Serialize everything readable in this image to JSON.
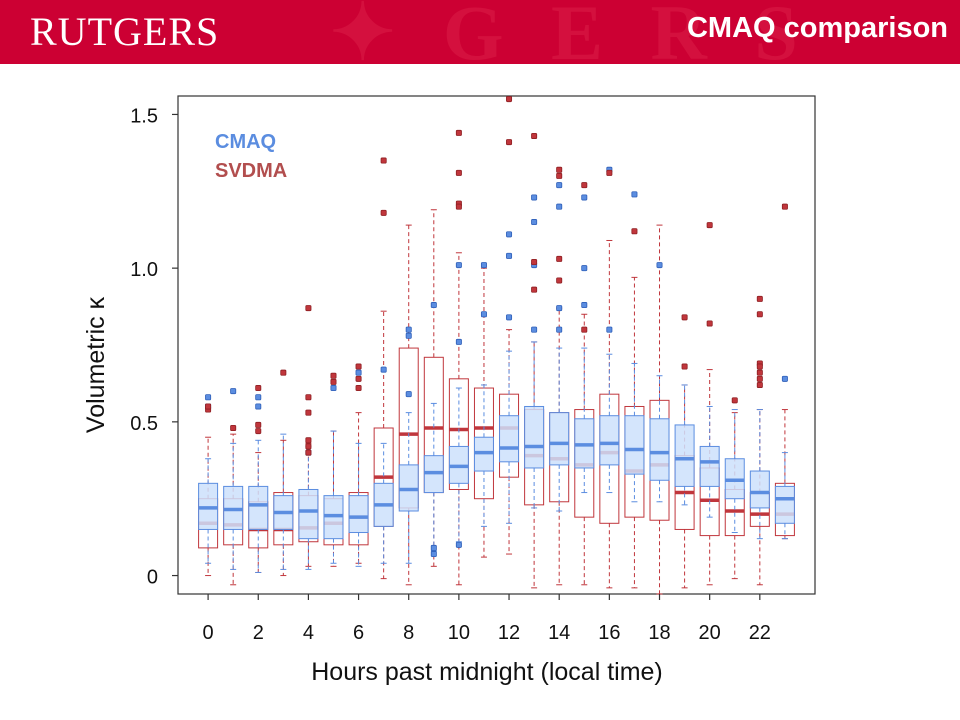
{
  "header": {
    "logo_text": "RUTGERS",
    "title": "CMAQ comparison"
  },
  "colors": {
    "header_bg": "#cc0033",
    "cmaq": "#5b8de0",
    "cmaq_fill": "#cde0fb",
    "svdma": "#c0363c"
  },
  "chart_data": {
    "type": "box",
    "xlabel": "Hours past midnight (local time)",
    "ylabel": "Volumetric κ",
    "xlim": [
      -1.2,
      24.2
    ],
    "ylim": [
      -0.06,
      1.56
    ],
    "x_ticks": [
      0,
      2,
      4,
      6,
      8,
      10,
      12,
      14,
      16,
      18,
      20,
      22
    ],
    "y_ticks": [
      0,
      0.5,
      1.0,
      1.5
    ],
    "y_tick_labels": [
      "0",
      "0.5",
      "1.0",
      "1.5"
    ],
    "legend_position": "top-left",
    "series": [
      {
        "name": "CMAQ",
        "boxes": [
          {
            "x": 0,
            "wlo": 0.04,
            "q1": 0.15,
            "med": 0.22,
            "q3": 0.3,
            "whi": 0.38,
            "out": [
              0.58,
              0.55
            ]
          },
          {
            "x": 1,
            "wlo": 0.02,
            "q1": 0.15,
            "med": 0.215,
            "q3": 0.29,
            "whi": 0.43,
            "out": [
              0.6
            ]
          },
          {
            "x": 2,
            "wlo": 0.01,
            "q1": 0.15,
            "med": 0.23,
            "q3": 0.29,
            "whi": 0.44,
            "out": [
              0.55,
              0.58
            ]
          },
          {
            "x": 3,
            "wlo": 0.02,
            "q1": 0.15,
            "med": 0.205,
            "q3": 0.26,
            "whi": 0.46,
            "out": []
          },
          {
            "x": 4,
            "wlo": 0.02,
            "q1": 0.12,
            "med": 0.21,
            "q3": 0.28,
            "whi": 0.42,
            "out": [
              0.4
            ]
          },
          {
            "x": 5,
            "wlo": 0.04,
            "q1": 0.12,
            "med": 0.195,
            "q3": 0.26,
            "whi": 0.47,
            "out": [
              0.61
            ]
          },
          {
            "x": 6,
            "wlo": 0.03,
            "q1": 0.14,
            "med": 0.19,
            "q3": 0.26,
            "whi": 0.43,
            "out": [
              0.66
            ]
          },
          {
            "x": 7,
            "wlo": 0.04,
            "q1": 0.16,
            "med": 0.23,
            "q3": 0.3,
            "whi": 0.43,
            "out": [
              0.67
            ]
          },
          {
            "x": 8,
            "wlo": 0.04,
            "q1": 0.21,
            "med": 0.28,
            "q3": 0.36,
            "whi": 0.53,
            "out": [
              0.8,
              0.78,
              0.59
            ]
          },
          {
            "x": 9,
            "wlo": 0.08,
            "q1": 0.27,
            "med": 0.335,
            "q3": 0.39,
            "whi": 0.56,
            "out": [
              0.88,
              0.07,
              0.09
            ]
          },
          {
            "x": 10,
            "wlo": 0.11,
            "q1": 0.3,
            "med": 0.355,
            "q3": 0.42,
            "whi": 0.61,
            "out": [
              1.01,
              0.76,
              0.1
            ]
          },
          {
            "x": 11,
            "wlo": 0.16,
            "q1": 0.34,
            "med": 0.4,
            "q3": 0.45,
            "whi": 0.62,
            "out": [
              1.01,
              0.85
            ]
          },
          {
            "x": 12,
            "wlo": 0.17,
            "q1": 0.37,
            "med": 0.415,
            "q3": 0.52,
            "whi": 0.73,
            "out": [
              1.11,
              1.04,
              0.84
            ]
          },
          {
            "x": 13,
            "wlo": 0.22,
            "q1": 0.35,
            "med": 0.42,
            "q3": 0.55,
            "whi": 0.76,
            "out": [
              1.23,
              1.15,
              1.01,
              0.8
            ]
          },
          {
            "x": 14,
            "wlo": 0.21,
            "q1": 0.36,
            "med": 0.43,
            "q3": 0.53,
            "whi": 0.74,
            "out": [
              1.27,
              1.2,
              0.87,
              0.8
            ]
          },
          {
            "x": 15,
            "wlo": 0.27,
            "q1": 0.35,
            "med": 0.425,
            "q3": 0.51,
            "whi": 0.74,
            "out": [
              1.23,
              1.0,
              0.88
            ]
          },
          {
            "x": 16,
            "wlo": 0.27,
            "q1": 0.36,
            "med": 0.43,
            "q3": 0.52,
            "whi": 0.72,
            "out": [
              1.32,
              0.8
            ]
          },
          {
            "x": 17,
            "wlo": 0.24,
            "q1": 0.33,
            "med": 0.41,
            "q3": 0.52,
            "whi": 0.69,
            "out": [
              1.24
            ]
          },
          {
            "x": 18,
            "wlo": 0.24,
            "q1": 0.31,
            "med": 0.4,
            "q3": 0.51,
            "whi": 0.65,
            "out": [
              1.01
            ]
          },
          {
            "x": 19,
            "wlo": 0.23,
            "q1": 0.29,
            "med": 0.38,
            "q3": 0.49,
            "whi": 0.62,
            "out": []
          },
          {
            "x": 20,
            "wlo": 0.19,
            "q1": 0.29,
            "med": 0.37,
            "q3": 0.42,
            "whi": 0.55,
            "out": []
          },
          {
            "x": 21,
            "wlo": 0.14,
            "q1": 0.25,
            "med": 0.31,
            "q3": 0.38,
            "whi": 0.54,
            "out": []
          },
          {
            "x": 22,
            "wlo": 0.12,
            "q1": 0.22,
            "med": 0.27,
            "q3": 0.34,
            "whi": 0.54,
            "out": []
          },
          {
            "x": 23,
            "wlo": 0.12,
            "q1": 0.17,
            "med": 0.25,
            "q3": 0.29,
            "whi": 0.4,
            "out": [
              0.64
            ]
          }
        ]
      },
      {
        "name": "SVDMA",
        "boxes": [
          {
            "x": 0,
            "wlo": 0.0,
            "q1": 0.09,
            "med": 0.17,
            "q3": 0.25,
            "whi": 0.45,
            "out": [
              0.54,
              0.55
            ]
          },
          {
            "x": 1,
            "wlo": -0.03,
            "q1": 0.1,
            "med": 0.165,
            "q3": 0.25,
            "whi": 0.46,
            "out": [
              0.48
            ]
          },
          {
            "x": 2,
            "wlo": 0.01,
            "q1": 0.09,
            "med": 0.15,
            "q3": 0.24,
            "whi": 0.4,
            "out": [
              0.49,
              0.47,
              0.61
            ]
          },
          {
            "x": 3,
            "wlo": 0.0,
            "q1": 0.1,
            "med": 0.15,
            "q3": 0.27,
            "whi": 0.44,
            "out": [
              0.66
            ]
          },
          {
            "x": 4,
            "wlo": 0.03,
            "q1": 0.11,
            "med": 0.155,
            "q3": 0.26,
            "whi": 0.43,
            "out": [
              0.87,
              0.58,
              0.53,
              0.44,
              0.42,
              0.4
            ]
          },
          {
            "x": 5,
            "wlo": 0.03,
            "q1": 0.1,
            "med": 0.17,
            "q3": 0.25,
            "whi": 0.47,
            "out": [
              0.65,
              0.63
            ]
          },
          {
            "x": 6,
            "wlo": 0.04,
            "q1": 0.1,
            "med": 0.19,
            "q3": 0.27,
            "whi": 0.53,
            "out": [
              0.68,
              0.64,
              0.61
            ]
          },
          {
            "x": 7,
            "wlo": -0.01,
            "q1": 0.16,
            "med": 0.32,
            "q3": 0.48,
            "whi": 0.86,
            "out": [
              1.35,
              1.18
            ]
          },
          {
            "x": 8,
            "wlo": -0.03,
            "q1": 0.22,
            "med": 0.46,
            "q3": 0.74,
            "whi": 1.14,
            "out": []
          },
          {
            "x": 9,
            "wlo": 0.03,
            "q1": 0.27,
            "med": 0.48,
            "q3": 0.71,
            "whi": 1.19,
            "out": []
          },
          {
            "x": 10,
            "wlo": -0.03,
            "q1": 0.28,
            "med": 0.475,
            "q3": 0.64,
            "whi": 1.05,
            "out": [
              1.44,
              1.31,
              1.21,
              1.2
            ]
          },
          {
            "x": 11,
            "wlo": 0.06,
            "q1": 0.25,
            "med": 0.48,
            "q3": 0.61,
            "whi": 1.0,
            "out": []
          },
          {
            "x": 12,
            "wlo": 0.07,
            "q1": 0.32,
            "med": 0.48,
            "q3": 0.59,
            "whi": 0.8,
            "out": [
              1.55,
              1.41
            ]
          },
          {
            "x": 13,
            "wlo": -0.04,
            "q1": 0.23,
            "med": 0.39,
            "q3": 0.54,
            "whi": 0.76,
            "out": [
              1.43,
              1.02,
              0.93
            ]
          },
          {
            "x": 14,
            "wlo": -0.03,
            "q1": 0.24,
            "med": 0.38,
            "q3": 0.53,
            "whi": 0.87,
            "out": [
              1.32,
              1.3,
              1.03,
              0.96
            ]
          },
          {
            "x": 15,
            "wlo": -0.03,
            "q1": 0.19,
            "med": 0.36,
            "q3": 0.54,
            "whi": 0.85,
            "out": [
              1.27,
              0.8
            ]
          },
          {
            "x": 16,
            "wlo": -0.04,
            "q1": 0.17,
            "med": 0.4,
            "q3": 0.59,
            "whi": 1.09,
            "out": [
              1.31
            ]
          },
          {
            "x": 17,
            "wlo": -0.04,
            "q1": 0.19,
            "med": 0.34,
            "q3": 0.55,
            "whi": 0.97,
            "out": [
              1.12
            ]
          },
          {
            "x": 18,
            "wlo": -0.06,
            "q1": 0.18,
            "med": 0.36,
            "q3": 0.57,
            "whi": 1.14,
            "out": []
          },
          {
            "x": 19,
            "wlo": -0.04,
            "q1": 0.15,
            "med": 0.27,
            "q3": 0.39,
            "whi": 0.62,
            "out": [
              0.84,
              0.68
            ]
          },
          {
            "x": 20,
            "wlo": -0.03,
            "q1": 0.13,
            "med": 0.245,
            "q3": 0.35,
            "whi": 0.67,
            "out": [
              1.14,
              0.82
            ]
          },
          {
            "x": 21,
            "wlo": -0.01,
            "q1": 0.13,
            "med": 0.21,
            "q3": 0.28,
            "whi": 0.53,
            "out": [
              0.57
            ]
          },
          {
            "x": 22,
            "wlo": -0.03,
            "q1": 0.16,
            "med": 0.2,
            "q3": 0.27,
            "whi": 0.54,
            "out": [
              0.9,
              0.85,
              0.69,
              0.68,
              0.66,
              0.64,
              0.62
            ]
          },
          {
            "x": 23,
            "wlo": 0.12,
            "q1": 0.13,
            "med": 0.2,
            "q3": 0.3,
            "whi": 0.54,
            "out": [
              1.2
            ]
          }
        ]
      }
    ]
  }
}
